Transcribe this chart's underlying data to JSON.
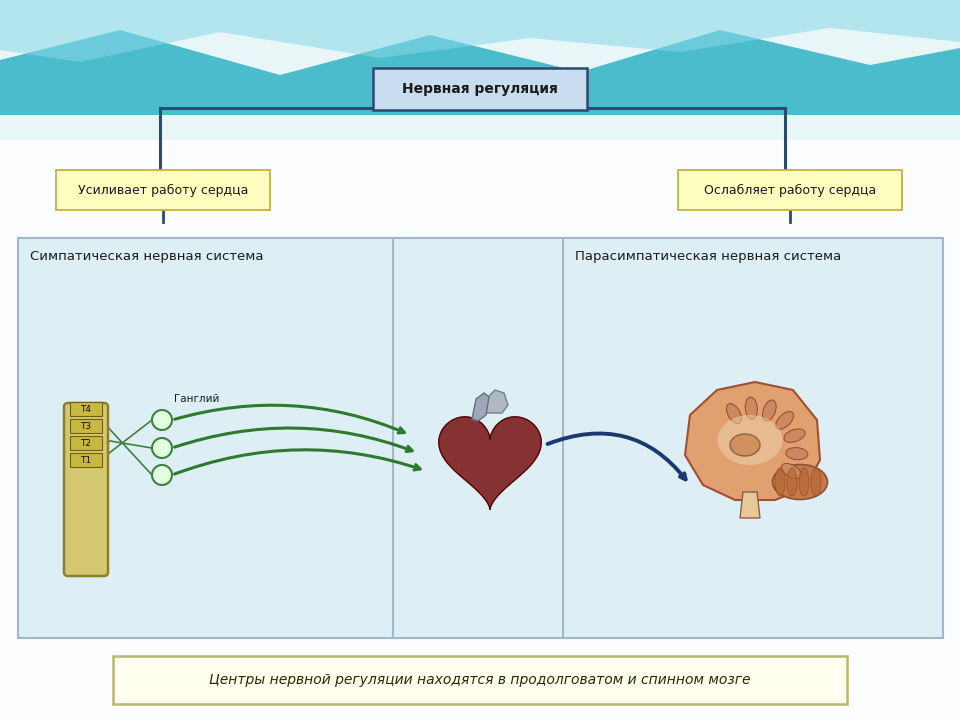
{
  "bg_color": "#e8f4f8",
  "title_box_text": "Нервная регуляция",
  "title_box_color": "#c8ddef",
  "title_box_border": "#2c4a6e",
  "left_label": "Усиливает работу сердца",
  "right_label": "Ослабляет работу сердца",
  "label_box_color": "#ffffc0",
  "label_box_border": "#c8b040",
  "left_panel_title": "Симпатическая нервная система",
  "right_panel_title": "Парасимпатическая нервная система",
  "panel_bg": "#ddeef5",
  "panel_border": "#a0b8c8",
  "gangliy_label": "Ганглий",
  "spine_labels": [
    "Т1",
    "Т2",
    "Т3",
    "Т4"
  ],
  "bottom_text": "Центры нервной регуляции находятся в продолговатом и спинном мозге",
  "bottom_box_color": "#fffff0",
  "bottom_box_border": "#b8b870",
  "arrow_left_color": "#2d7a2d",
  "arrow_right_color": "#1a3a6e",
  "spine_color": "#d4c870",
  "spine_border": "#8a8030",
  "ganglion_color": "#e0ffe0",
  "ganglion_border": "#408040",
  "connector_color": "#2c4a6e"
}
